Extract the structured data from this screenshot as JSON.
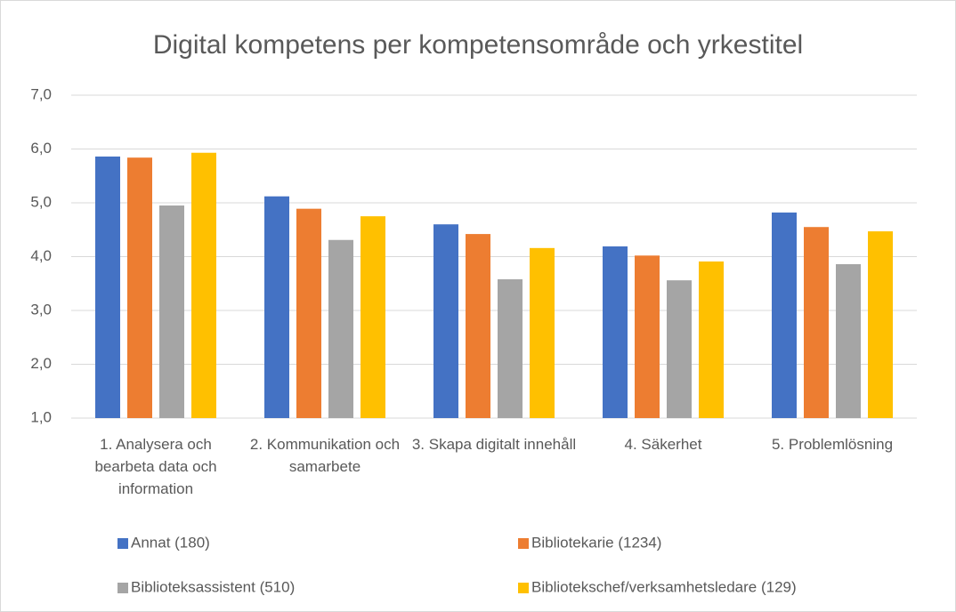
{
  "chart_data": {
    "type": "bar",
    "title": "Digital kompetens per kompetensområde och yrkestitel",
    "categories": [
      "1. Analysera och bearbeta data och information",
      "2. Kommunikation och samarbete",
      "3. Skapa digitalt innehåll",
      "4. Säkerhet",
      "5. Problemlösning"
    ],
    "series": [
      {
        "name": "Annat (180)",
        "color": "#4472c4",
        "values": [
          5.86,
          5.12,
          4.6,
          4.19,
          4.82
        ]
      },
      {
        "name": "Bibliotekarie (1234)",
        "color": "#ed7d31",
        "values": [
          5.84,
          4.89,
          4.42,
          4.02,
          4.55
        ]
      },
      {
        "name": "Biblioteksassistent (510)",
        "color": "#a5a5a5",
        "values": [
          4.95,
          4.31,
          3.58,
          3.56,
          3.86
        ]
      },
      {
        "name": "Bibliotekschef/verksamhetsledare (129)",
        "color": "#ffc000",
        "values": [
          5.93,
          4.75,
          4.16,
          3.91,
          4.47
        ]
      }
    ],
    "ylim": [
      1,
      7
    ],
    "yticks": [
      {
        "value": 1,
        "label": "1,0"
      },
      {
        "value": 2,
        "label": "2,0"
      },
      {
        "value": 3,
        "label": "3,0"
      },
      {
        "value": 4,
        "label": "4,0"
      },
      {
        "value": 5,
        "label": "5,0"
      },
      {
        "value": 6,
        "label": "6,0"
      },
      {
        "value": 7,
        "label": "7,0"
      }
    ],
    "grid": true,
    "legend": "bottom"
  }
}
